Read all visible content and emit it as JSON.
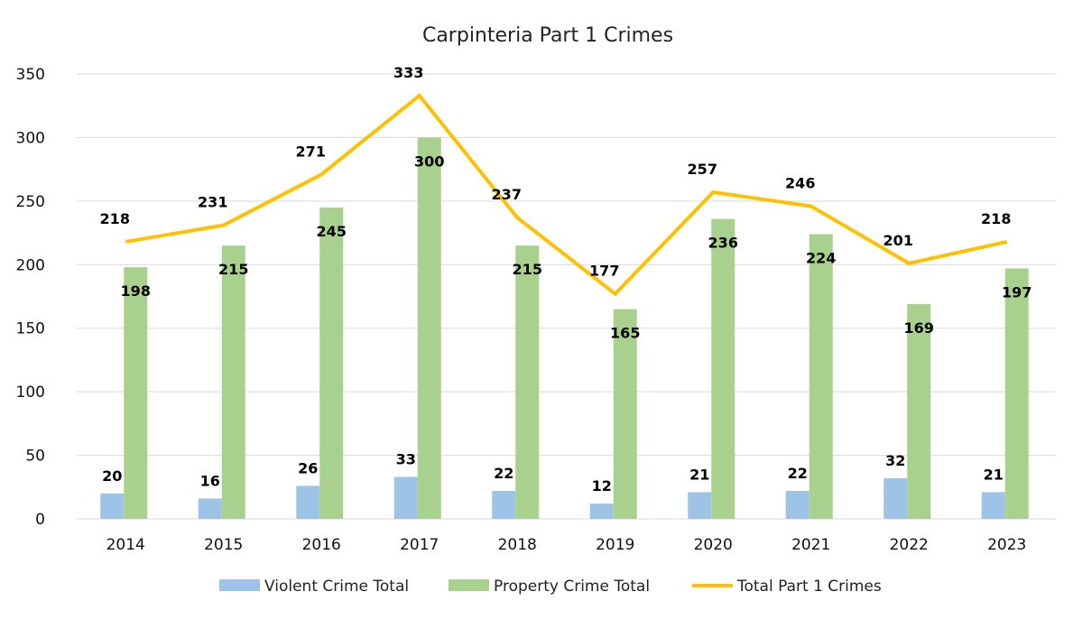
{
  "chart_data": {
    "type": "bar",
    "title": "Carpinteria Part 1 Crimes",
    "xlabel": "",
    "ylabel": "",
    "categories": [
      "2014",
      "2015",
      "2016",
      "2017",
      "2018",
      "2019",
      "2020",
      "2021",
      "2022",
      "2023"
    ],
    "series": [
      {
        "name": "Violent Crime Total",
        "type": "bar",
        "color": "#9dc3e6",
        "values": [
          20,
          16,
          26,
          33,
          22,
          12,
          21,
          22,
          32,
          21
        ]
      },
      {
        "name": "Property Crime Total",
        "type": "bar",
        "color": "#a9d18e",
        "values": [
          198,
          215,
          245,
          300,
          215,
          165,
          236,
          224,
          169,
          197
        ]
      },
      {
        "name": "Total Part 1 Crimes",
        "type": "line",
        "color": "#ffc000",
        "values": [
          218,
          231,
          271,
          333,
          237,
          177,
          257,
          246,
          201,
          218
        ]
      }
    ],
    "ylim": [
      0,
      350
    ],
    "yticks": [
      0,
      50,
      100,
      150,
      200,
      250,
      300,
      350
    ],
    "grid": true,
    "legend_position": "bottom"
  }
}
